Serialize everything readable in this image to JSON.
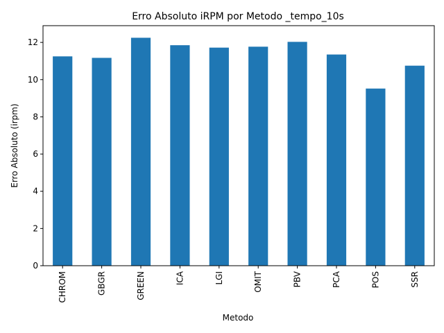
{
  "chart_data": {
    "type": "bar",
    "title": "Erro Absoluto iRPM por Metodo _tempo_10s",
    "xlabel": "Metodo",
    "ylabel": "Erro Absoluto (irpm)",
    "categories": [
      "CHROM",
      "GBGR",
      "GREEN",
      "ICA",
      "LGI",
      "OMIT",
      "PBV",
      "PCA",
      "POS",
      "SSR"
    ],
    "values": [
      11.25,
      11.17,
      12.25,
      11.85,
      11.72,
      11.77,
      12.03,
      11.35,
      9.52,
      10.75
    ],
    "ylim": [
      0,
      12.9
    ],
    "yticks": [
      0,
      2,
      4,
      6,
      8,
      10,
      12
    ],
    "color": "#1f77b4",
    "grid": false,
    "legend": "none"
  }
}
